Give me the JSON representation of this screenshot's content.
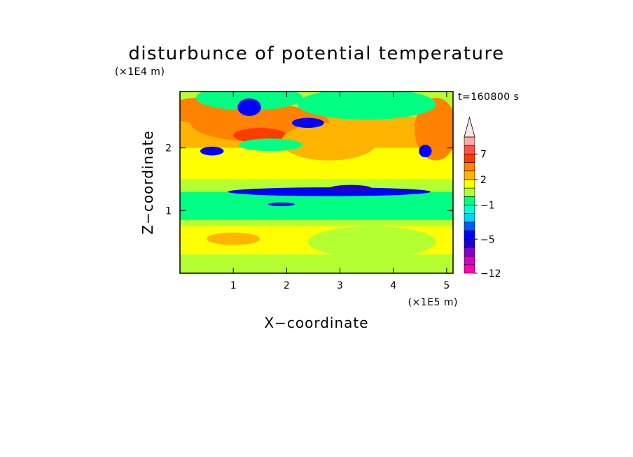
{
  "chart_data": {
    "type": "heatmap",
    "title": "disturbunce of potential temperature",
    "xlabel": "X−coordinate",
    "ylabel": "Z−coordinate",
    "x_unit": "(×1E5 m)",
    "y_unit": "(×1E4 m)",
    "time_label": "t=160800 s",
    "xlim": [
      0,
      5.12
    ],
    "ylim": [
      0,
      2.9
    ],
    "x_ticks": [
      1,
      2,
      3,
      4,
      5
    ],
    "y_ticks": [
      1,
      2
    ],
    "colorbar": {
      "extend": "max",
      "boundaries": [
        -12,
        -10,
        -8,
        -6,
        -5,
        -4,
        -3,
        -2,
        -1,
        0,
        1,
        2,
        3,
        5,
        7,
        9,
        11
      ],
      "colors": [
        "#ff00b4",
        "#d200c8",
        "#8200c8",
        "#1e00c8",
        "#0000ff",
        "#005aff",
        "#00d2ff",
        "#00ffd2",
        "#00ff82",
        "#b4ff32",
        "#ffff00",
        "#ffb400",
        "#ff8200",
        "#ff3c00",
        "#ff5050",
        "#ffaaaa"
      ],
      "extend_color": "#ffe6e6",
      "tick_labels": [
        "7",
        "2",
        "−1",
        "−5",
        "−12"
      ],
      "tick_values": [
        7,
        2,
        -1,
        -5,
        -12
      ]
    },
    "layers": [
      {
        "z": [
          0.0,
          0.3
        ],
        "value": 0.5
      },
      {
        "z": [
          0.3,
          0.75
        ],
        "value": 1.5
      },
      {
        "z": [
          0.75,
          0.85
        ],
        "value": 0.5
      },
      {
        "z": [
          0.85,
          1.3
        ],
        "value": -0.5
      },
      {
        "z": [
          1.3,
          1.5
        ],
        "value": 0.5
      },
      {
        "z": [
          1.5,
          2.0
        ],
        "value": 1.5
      },
      {
        "z": [
          2.0,
          2.5
        ],
        "value": 2.5
      },
      {
        "z": [
          2.5,
          2.9
        ],
        "value": 0.5
      }
    ],
    "features": [
      {
        "x": 1.5,
        "z": 2.4,
        "rx": 1.3,
        "rz": 0.3,
        "value": 4
      },
      {
        "x": 1.5,
        "z": 2.2,
        "rx": 0.5,
        "rz": 0.12,
        "value": 6
      },
      {
        "x": 0.3,
        "z": 2.6,
        "rx": 0.5,
        "rz": 0.2,
        "value": 4
      },
      {
        "x": 2.8,
        "z": 2.1,
        "rx": 0.9,
        "rz": 0.3,
        "value": 2.5
      },
      {
        "x": 4.8,
        "z": 2.3,
        "rx": 0.4,
        "rz": 0.5,
        "value": 4
      },
      {
        "x": 1.3,
        "z": 2.8,
        "rx": 1.0,
        "rz": 0.2,
        "value": -0.5
      },
      {
        "x": 3.5,
        "z": 2.7,
        "rx": 1.3,
        "rz": 0.25,
        "value": -0.5
      },
      {
        "x": 1.7,
        "z": 2.05,
        "rx": 0.6,
        "rz": 0.1,
        "value": -0.5
      },
      {
        "x": 1.3,
        "z": 2.65,
        "rx": 0.22,
        "rz": 0.14,
        "value": -4.5
      },
      {
        "x": 0.6,
        "z": 1.95,
        "rx": 0.22,
        "rz": 0.07,
        "value": -4.5
      },
      {
        "x": 2.4,
        "z": 2.4,
        "rx": 0.3,
        "rz": 0.08,
        "value": -4.5
      },
      {
        "x": 2.8,
        "z": 1.3,
        "rx": 1.9,
        "rz": 0.07,
        "value": -4.5
      },
      {
        "x": 3.2,
        "z": 1.35,
        "rx": 0.4,
        "rz": 0.06,
        "value": -5.5
      },
      {
        "x": 4.6,
        "z": 1.95,
        "rx": 0.12,
        "rz": 0.1,
        "value": -4.5
      },
      {
        "x": 1.9,
        "z": 1.1,
        "rx": 0.25,
        "rz": 0.03,
        "value": -4.5
      },
      {
        "x": 3.6,
        "z": 0.5,
        "rx": 1.2,
        "rz": 0.25,
        "value": 0.5
      },
      {
        "x": 1.0,
        "z": 0.55,
        "rx": 0.5,
        "rz": 0.1,
        "value": 2.5
      }
    ]
  }
}
